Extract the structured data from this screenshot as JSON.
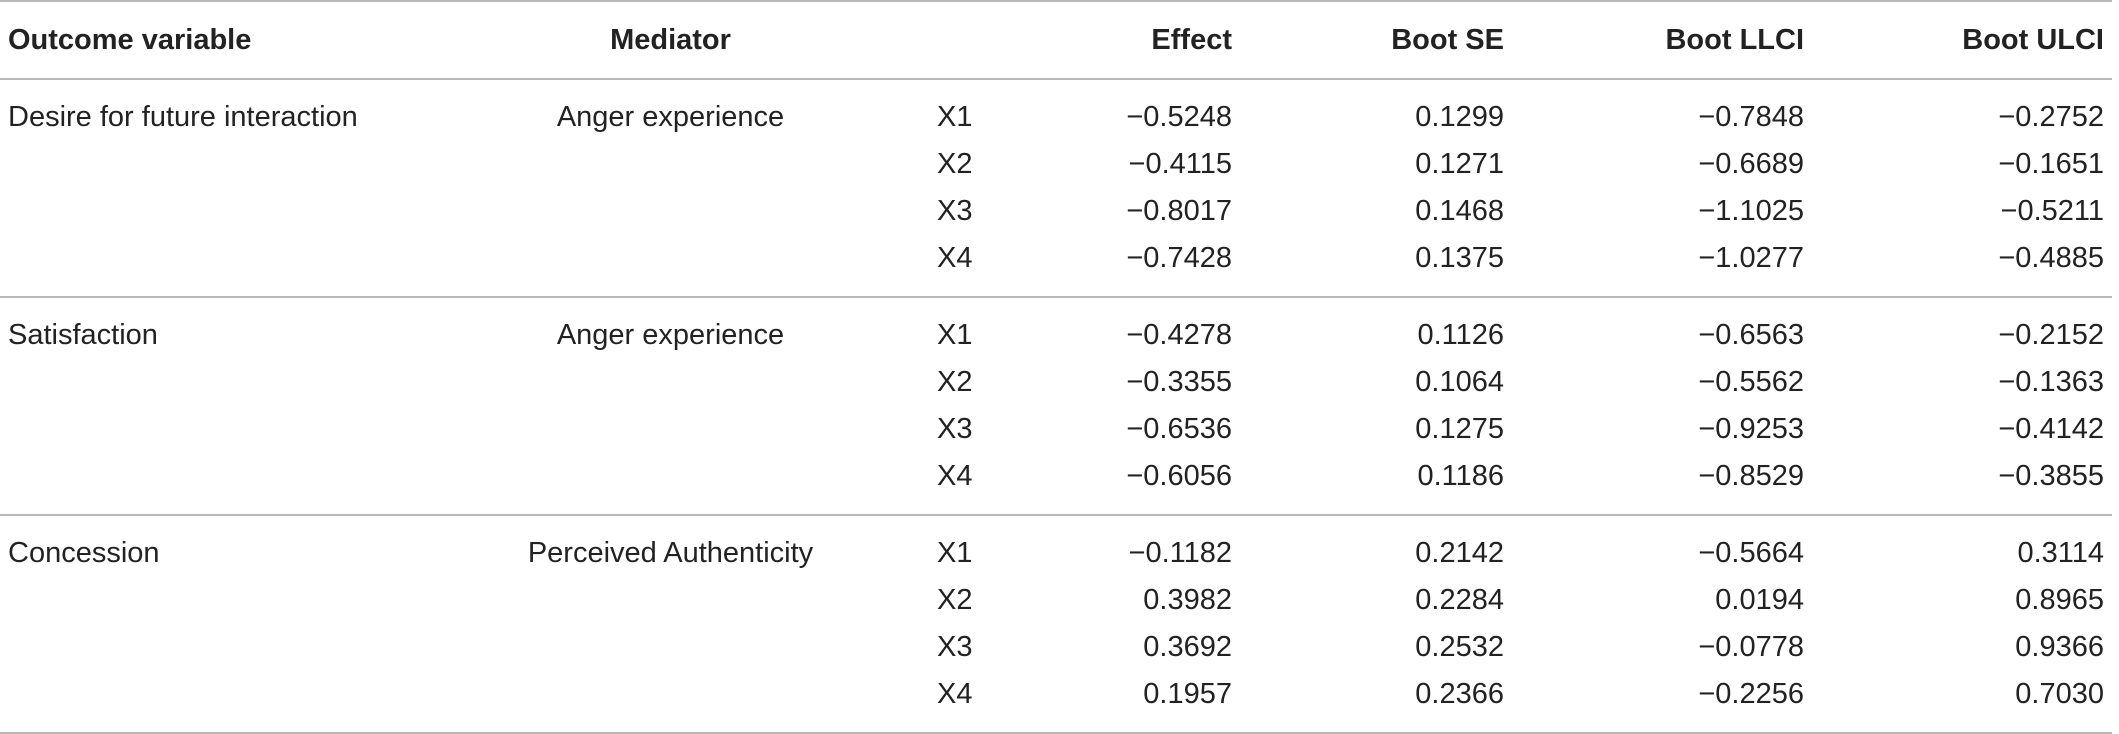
{
  "headers": {
    "outcome": "Outcome variable",
    "mediator": "Mediator",
    "x": "",
    "effect": "Effect",
    "boot_se": "Boot SE",
    "boot_llci": "Boot LLCI",
    "boot_ulci": "Boot ULCI"
  },
  "groups": [
    {
      "outcome": "Desire for future interaction",
      "mediator": "Anger experience",
      "rows": [
        {
          "x": "X1",
          "effect": "−0.5248",
          "se": "0.1299",
          "llci": "−0.7848",
          "ulci": "−0.2752"
        },
        {
          "x": "X2",
          "effect": "−0.4115",
          "se": "0.1271",
          "llci": "−0.6689",
          "ulci": "−0.1651"
        },
        {
          "x": "X3",
          "effect": "−0.8017",
          "se": "0.1468",
          "llci": "−1.1025",
          "ulci": "−0.5211"
        },
        {
          "x": "X4",
          "effect": "−0.7428",
          "se": "0.1375",
          "llci": "−1.0277",
          "ulci": "−0.4885"
        }
      ]
    },
    {
      "outcome": "Satisfaction",
      "mediator": "Anger experience",
      "rows": [
        {
          "x": "X1",
          "effect": "−0.4278",
          "se": "0.1126",
          "llci": "−0.6563",
          "ulci": "−0.2152"
        },
        {
          "x": "X2",
          "effect": "−0.3355",
          "se": "0.1064",
          "llci": "−0.5562",
          "ulci": "−0.1363"
        },
        {
          "x": "X3",
          "effect": "−0.6536",
          "se": "0.1275",
          "llci": "−0.9253",
          "ulci": "−0.4142"
        },
        {
          "x": "X4",
          "effect": "−0.6056",
          "se": "0.1186",
          "llci": "−0.8529",
          "ulci": "−0.3855"
        }
      ]
    },
    {
      "outcome": "Concession",
      "mediator": "Perceived Authenticity",
      "rows": [
        {
          "x": "X1",
          "effect": "−0.1182",
          "se": "0.2142",
          "llci": "−0.5664",
          "ulci": "0.3114"
        },
        {
          "x": "X2",
          "effect": "0.3982",
          "se": "0.2284",
          "llci": "0.0194",
          "ulci": "0.8965"
        },
        {
          "x": "X3",
          "effect": "0.3692",
          "se": "0.2532",
          "llci": "−0.0778",
          "ulci": "0.9366"
        },
        {
          "x": "X4",
          "effect": "0.1957",
          "se": "0.2366",
          "llci": "−0.2256",
          "ulci": "0.7030"
        }
      ]
    }
  ]
}
